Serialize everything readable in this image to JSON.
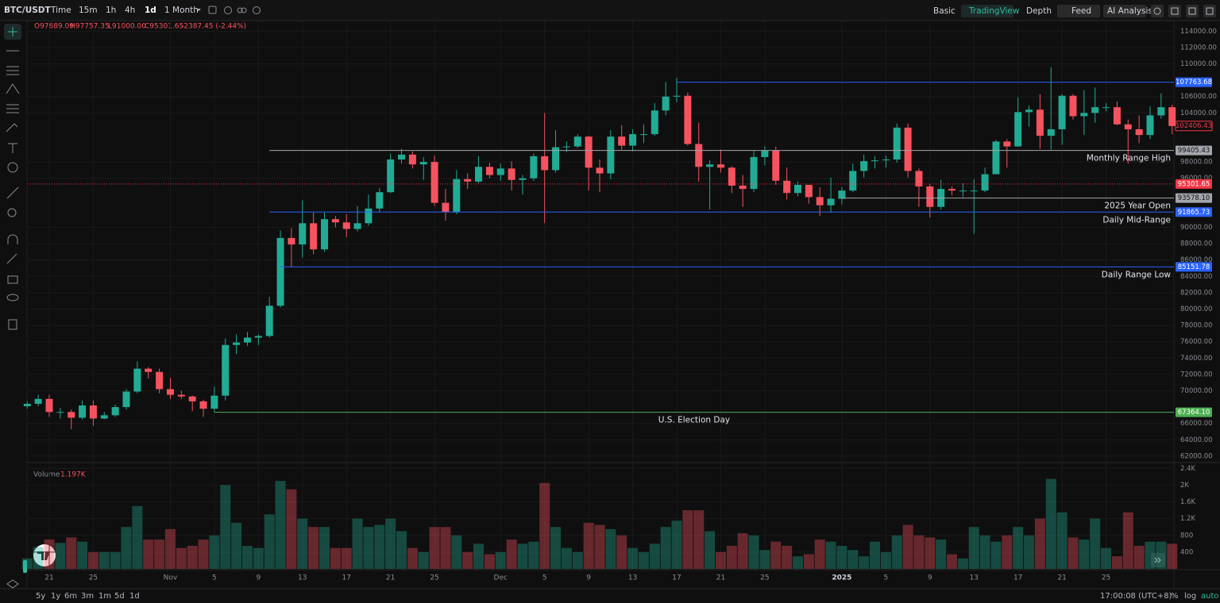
{
  "header": {
    "symbol": "BTC/USDT",
    "intervals": [
      "Time",
      "15m",
      "1h",
      "4h",
      "1d"
    ],
    "range": "1 Month",
    "views": [
      "Basic",
      "TradingView",
      "Depth"
    ],
    "buttons": [
      "Feed",
      "AI Analysis"
    ]
  },
  "legend": [
    "O97689.09",
    "H97757.35",
    "L91000.00",
    "C95301.65",
    "-2387.45 (-2.44%)"
  ],
  "footer": {
    "ranges": [
      "5y",
      "1y",
      "6m",
      "3m",
      "1m",
      "5d",
      "1d"
    ],
    "clock": "17:00:08 (UTC+8)",
    "options": [
      "%",
      "log",
      "auto"
    ]
  },
  "chart_data": {
    "type": "candlestick",
    "up_color": "#22ab94",
    "down_color": "#f7525f",
    "grid": true,
    "categories": [
      null,
      null,
      "21",
      null,
      null,
      null,
      "25",
      null,
      null,
      null,
      null,
      null,
      null,
      "Nov",
      null,
      null,
      null,
      "5",
      null,
      null,
      null,
      "9",
      null,
      null,
      null,
      "13",
      null,
      null,
      null,
      "17",
      null,
      null,
      null,
      "21",
      null,
      null,
      null,
      "25",
      null,
      null,
      null,
      null,
      null,
      "Dec",
      null,
      null,
      null,
      "5",
      null,
      null,
      null,
      "9",
      null,
      null,
      null,
      "13",
      null,
      null,
      null,
      "17",
      null,
      null,
      null,
      "21",
      null,
      null,
      null,
      "25",
      null,
      null,
      null,
      null,
      null,
      null,
      "2025",
      null,
      null,
      null,
      "5",
      null,
      null,
      null,
      "9",
      null,
      null,
      null,
      "13",
      null,
      null,
      null,
      "17",
      null,
      null,
      null,
      "21",
      null,
      null,
      null,
      "25",
      null,
      null,
      null,
      null,
      null,
      null
    ],
    "open": [
      68100,
      68400,
      69000,
      67400,
      67400,
      66700,
      68200,
      66600,
      67000,
      68000,
      69900,
      72700,
      72300,
      70200,
      69500,
      69300,
      68700,
      67800,
      69400,
      75600,
      75900,
      76500,
      76700,
      80400,
      88700,
      87900,
      90500,
      87300,
      91000,
      90600,
      89800,
      90500,
      92300,
      94300,
      98300,
      98900,
      97700,
      98000,
      93000,
      91900,
      95900,
      95600,
      97400,
      96400,
      97200,
      95800,
      96000,
      98700,
      97000,
      99800,
      99900,
      101100,
      97300,
      96600,
      101100,
      100000,
      101400,
      101400,
      104300,
      106000,
      106100,
      100200,
      97400,
      97700,
      97300,
      95100,
      94700,
      98600,
      99400,
      95700,
      94200,
      95200,
      93700,
      92700,
      93500,
      94500,
      96900,
      98100,
      98200,
      98300,
      102200,
      96900,
      95000,
      92500,
      94700,
      94500,
      94500,
      94500,
      96500,
      100500,
      99900,
      104100,
      104400,
      101200,
      102000,
      106100,
      103600,
      104000,
      104700,
      104700,
      102600,
      102000,
      101300,
      103700,
      104700
    ],
    "high": [
      68700,
      69500,
      69500,
      67900,
      67700,
      68800,
      68800,
      67400,
      68300,
      70200,
      73600,
      72900,
      72700,
      71600,
      70000,
      69400,
      68900,
      70500,
      76400,
      76900,
      77200,
      76900,
      81500,
      89600,
      89900,
      93300,
      91800,
      91800,
      91400,
      91600,
      92600,
      94000,
      94800,
      99000,
      99600,
      99300,
      98600,
      98800,
      94700,
      97000,
      96600,
      98700,
      97900,
      97800,
      98100,
      96400,
      99000,
      104000,
      101900,
      100500,
      101400,
      101200,
      98300,
      101900,
      102500,
      102000,
      102600,
      105200,
      107800,
      108300,
      106500,
      102800,
      98200,
      99500,
      97500,
      96400,
      99400,
      99900,
      99900,
      97300,
      95600,
      95200,
      94900,
      96100,
      94900,
      97800,
      98900,
      98700,
      98800,
      102700,
      102700,
      97200,
      95300,
      95800,
      95000,
      95400,
      95900,
      97300,
      100700,
      100800,
      105900,
      104900,
      106300,
      109600,
      106300,
      106300,
      106800,
      107100,
      105200,
      105400,
      103200,
      103700,
      104800,
      106400,
      105000
    ],
    "low": [
      67800,
      68100,
      66800,
      66600,
      65300,
      66500,
      65700,
      66500,
      66800,
      67700,
      69700,
      71500,
      69700,
      69000,
      69000,
      67500,
      66800,
      67400,
      68800,
      74500,
      75500,
      75600,
      76500,
      80200,
      85100,
      86300,
      86700,
      87000,
      90000,
      88800,
      89500,
      90200,
      91800,
      94200,
      97800,
      97200,
      95800,
      92600,
      90800,
      91600,
      94700,
      95400,
      96000,
      95700,
      94500,
      94000,
      95700,
      90500,
      96700,
      99200,
      99700,
      94500,
      94300,
      95900,
      99500,
      99300,
      100300,
      101200,
      103700,
      105300,
      100000,
      95600,
      92200,
      96700,
      94200,
      92500,
      94300,
      97600,
      95200,
      93400,
      93800,
      92900,
      91400,
      91800,
      92800,
      94300,
      96100,
      97200,
      97300,
      97900,
      96100,
      92500,
      91200,
      92200,
      93900,
      93700,
      89200,
      94300,
      96500,
      97300,
      99900,
      102300,
      99600,
      99500,
      100100,
      103200,
      101300,
      102800,
      104200,
      102500,
      97800,
      100300,
      100800,
      103300,
      101400
    ],
    "close": [
      68400,
      69000,
      67400,
      67400,
      66700,
      68200,
      66600,
      67000,
      68000,
      69900,
      72700,
      72300,
      70200,
      69500,
      69300,
      68700,
      67800,
      69400,
      75600,
      75900,
      76500,
      76700,
      80400,
      88700,
      87900,
      90500,
      87300,
      91000,
      90600,
      89800,
      90500,
      92300,
      94300,
      98300,
      98900,
      97700,
      98000,
      93000,
      91900,
      95900,
      95600,
      97400,
      96400,
      97200,
      95800,
      96000,
      98700,
      97000,
      99800,
      99900,
      101100,
      97300,
      96600,
      101100,
      100000,
      101400,
      101400,
      104300,
      106000,
      106100,
      100200,
      97400,
      97700,
      97300,
      95100,
      94700,
      98600,
      99400,
      95700,
      94200,
      95200,
      93700,
      92700,
      93500,
      94500,
      96900,
      98100,
      98200,
      98300,
      102200,
      96900,
      95000,
      92500,
      94700,
      94500,
      94500,
      94500,
      96500,
      100500,
      99900,
      104100,
      104400,
      101200,
      102000,
      106100,
      103600,
      104000,
      104700,
      104700,
      102600,
      102000,
      101300,
      103700,
      104700,
      102400
    ],
    "ylim": [
      61500,
      115200
    ],
    "yticks": [
      {
        "value": 114000,
        "label": "114000.00"
      },
      {
        "value": 112000,
        "label": "112000.00"
      },
      {
        "value": 110000,
        "label": "110000.00"
      },
      {
        "value": 106000,
        "label": "106000.00"
      },
      {
        "value": 104000,
        "label": "104000.00"
      },
      {
        "value": 98000,
        "label": "98000.00"
      },
      {
        "value": 96000,
        "label": "96000.00"
      },
      {
        "value": 90000,
        "label": "90000.00"
      },
      {
        "value": 88000,
        "label": "88000.00"
      },
      {
        "value": 86000,
        "label": "86000.00"
      },
      {
        "value": 84000,
        "label": "84000.00"
      },
      {
        "value": 82000,
        "label": "82000.00"
      },
      {
        "value": 80000,
        "label": "80000.00"
      },
      {
        "value": 78000,
        "label": "78000.00"
      },
      {
        "value": 76000,
        "label": "76000.00"
      },
      {
        "value": 74000,
        "label": "74000.00"
      },
      {
        "value": 72000,
        "label": "72000.00"
      },
      {
        "value": 70000,
        "label": "70000.00"
      },
      {
        "value": 66000,
        "label": "66000.00"
      },
      {
        "value": 64000,
        "label": "64000.00"
      },
      {
        "value": 62000,
        "label": "62000.00"
      }
    ],
    "levels": [
      {
        "value": 107763.68,
        "color": "#2962ff"
      },
      {
        "value": 99405.43,
        "color": "#a3a6ad",
        "text": "Monthly Range High"
      },
      {
        "value": 95301.65,
        "color": "#f23645",
        "line_style": "dotted"
      },
      {
        "value": 93578.1,
        "label": "93578.10",
        "color": "#a3a6ad",
        "text": "2025 Year Open"
      },
      {
        "value": 91865.73,
        "color": "#2962ff",
        "text": "Daily Mid-Range"
      },
      {
        "value": 85151.78,
        "color": "#2962ff",
        "text": "Daily Range Low"
      },
      {
        "value": 67364.1,
        "label": "67364.10",
        "color": "#4caf50",
        "text": "U.S. Election Day"
      }
    ],
    "last_price": {
      "value": 102406.43,
      "color": "#f23645"
    },
    "volume": {
      "title": "Volume",
      "last": "1.197K",
      "values": [
        250,
        520,
        700,
        620,
        750,
        650,
        400,
        400,
        400,
        1000,
        1500,
        700,
        700,
        950,
        500,
        550,
        700,
        800,
        2000,
        1100,
        550,
        500,
        1300,
        2100,
        1900,
        1200,
        1000,
        1000,
        500,
        500,
        1200,
        1000,
        1050,
        1200,
        900,
        500,
        400,
        1000,
        1000,
        800,
        400,
        600,
        350,
        400,
        700,
        600,
        650,
        2050,
        1000,
        500,
        400,
        1100,
        1050,
        950,
        800,
        500,
        400,
        600,
        1000,
        1150,
        1400,
        1400,
        900,
        400,
        550,
        850,
        800,
        450,
        650,
        550,
        300,
        350,
        700,
        650,
        550,
        450,
        300,
        650,
        400,
        800,
        1050,
        800,
        750,
        700,
        350,
        250,
        1000,
        800,
        650,
        800,
        1000,
        800,
        1200,
        2150,
        1350,
        750,
        700,
        1200,
        500,
        300,
        1350,
        550,
        650,
        650,
        600
      ],
      "ylim": [
        0,
        2500
      ],
      "yticks": [
        {
          "value": 2400,
          "label": "2.4K"
        },
        {
          "value": 2000,
          "label": "2K"
        },
        {
          "value": 1600,
          "label": "1.6K"
        },
        {
          "value": 1200,
          "label": "1.2K"
        },
        800,
        400
      ]
    }
  }
}
